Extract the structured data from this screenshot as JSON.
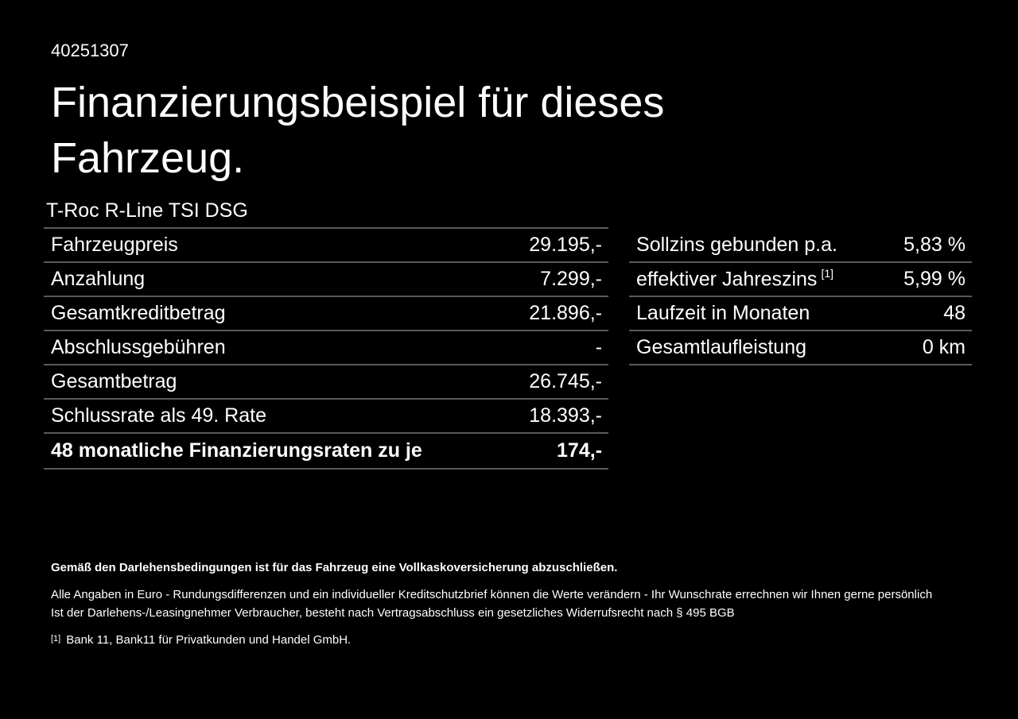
{
  "page": {
    "background_color": "#000000",
    "text_color": "#ffffff",
    "divider_color": "#5a5a5a"
  },
  "header": {
    "doc_number": "40251307",
    "title_line1": "Finanzierungsbeispiel für dieses",
    "title_line2": "Fahrzeug."
  },
  "vehicle": {
    "model": "T-Roc R-Line TSI DSG"
  },
  "finance_table": {
    "rows": [
      {
        "label": "Fahrzeugpreis",
        "value": "29.195,-"
      },
      {
        "label": "Anzahlung",
        "value": "7.299,-"
      },
      {
        "label": "Gesamtkreditbetrag",
        "value": "21.896,-"
      },
      {
        "label": "Abschlussgebühren",
        "value": "-"
      },
      {
        "label": "Gesamtbetrag",
        "value": "26.745,-"
      },
      {
        "label": "Schlussrate als 49. Rate",
        "value": "18.393,-"
      }
    ],
    "highlight_row": {
      "label": "48 monatliche Finanzierungsraten zu je",
      "value": "174,-"
    }
  },
  "conditions_table": {
    "rows": [
      {
        "label": "Sollzins gebunden p.a.",
        "superscript": "",
        "value": "5,83 %"
      },
      {
        "label": "effektiver Jahreszins",
        "superscript": "[1]",
        "value": "5,99 %"
      },
      {
        "label": "Laufzeit in Monaten",
        "superscript": "",
        "value": "48"
      },
      {
        "label": "Gesamtlaufleistung",
        "superscript": "",
        "value": "0 km"
      }
    ]
  },
  "footer": {
    "bold_note": "Gemäß den Darlehensbedingungen ist für das Fahrzeug eine Vollkaskoversicherung abzuschließen.",
    "note_line1": "Alle Angaben in Euro - Rundungsdifferenzen und ein individueller Kreditschutzbrief können die Werte verändern - Ihr Wunschrate errechnen wir Ihnen gerne persönlich",
    "note_line2": "Ist der Darlehens-/Leasingnehmer Verbraucher, besteht nach Vertragsabschluss ein gesetzliches Widerrufsrecht nach § 495 BGB",
    "footnote_marker": "[1]",
    "footnote_text": "Bank 11, Bank11 für Privatkunden und Handel GmbH."
  }
}
